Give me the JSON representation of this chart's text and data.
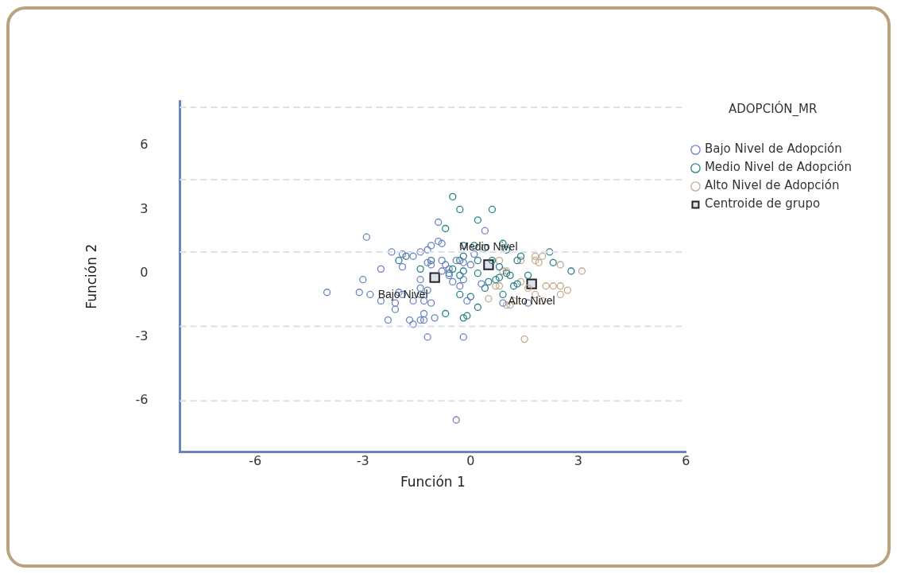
{
  "chart_data": {
    "type": "scatter",
    "xlabel": "Función 1",
    "ylabel": "Función 2",
    "legend_title": "ADOPCIÓN_MR",
    "legend": "top right",
    "marker": "circle",
    "grid": false,
    "xlim": [
      -8.1,
      6
    ],
    "ylim": [
      -8.4,
      8.1
    ],
    "xticks": [
      -6,
      -3,
      0,
      3,
      6
    ],
    "yticks": [
      -6,
      -3,
      0,
      3,
      6
    ],
    "ref_lines": [
      {
        "axis": "y",
        "value": 7.8,
        "label": null,
        "color": "#dcdfee",
        "line_style": "dashed"
      },
      {
        "axis": "y",
        "value": 4.4,
        "label": null,
        "color": "#dcdfee",
        "line_style": "dashed"
      },
      {
        "axis": "y",
        "value": 1,
        "label": null,
        "color": "#dcdfee",
        "line_style": "dashed"
      },
      {
        "axis": "y",
        "value": -2.5,
        "label": null,
        "color": "#dcdfee",
        "line_style": "dashed"
      },
      {
        "axis": "y",
        "value": -6,
        "label": null,
        "color": "#dcdfee",
        "line_style": "dashed"
      }
    ],
    "annotations": [
      {
        "text": "Bajo Nivel",
        "x": -1,
        "y": -0.2
      },
      {
        "text": "Medio Nivel",
        "x": 0.5,
        "y": 0.4
      },
      {
        "text": "Alto Nivel",
        "x": 1.7,
        "y": -0.5
      }
    ],
    "series": [
      {
        "name": "Bajo Nivel de Adopción",
        "color": "#6b84c0",
        "x": [
          -2.9,
          -0.9,
          0.4,
          -0.9,
          -0.8,
          -1.1,
          -2.2,
          -1.9,
          -1.6,
          -1.4,
          -1.2,
          -2.5,
          -1.9,
          -3,
          -4,
          -3.1,
          -2.8,
          -2.5,
          -2.1,
          -2.1,
          -2.3,
          -1.7,
          -1.6,
          -1.4,
          -1.3,
          -1,
          -1.3,
          -1.6,
          -1.3,
          -1.1,
          -1.9,
          -2,
          -1.4,
          -1.2,
          -1.4,
          -1.2,
          -0.8,
          -1.1,
          -0.7,
          -0.8,
          -0.5,
          -0.3,
          -0.2,
          -0.2,
          0,
          0.1,
          -1.2,
          -0.2,
          -0.4,
          -0.1,
          1.6,
          0.9,
          0.3,
          -0.6,
          -1.4,
          -0.4,
          -0.6
        ],
        "values": [
          1.7,
          2.4,
          2,
          1.5,
          1.4,
          1.3,
          1,
          0.9,
          0.8,
          1,
          1.1,
          0.2,
          0.3,
          -0.3,
          -0.9,
          -0.9,
          -1,
          -1.3,
          -1.4,
          -1.7,
          -2.2,
          -2.2,
          -2.4,
          -2.2,
          -2.2,
          -2.1,
          -1.9,
          -1.3,
          -1.3,
          -1.4,
          -1,
          -0.9,
          -1,
          -0.8,
          -0.3,
          0.5,
          0.6,
          0.4,
          0.4,
          0.1,
          -0.4,
          -0.6,
          -0.3,
          0.5,
          0.4,
          0.9,
          -3,
          -3,
          -6.9,
          -1.3,
          -1.4,
          -1.4,
          -0.5,
          -0.1,
          -0.7,
          0.6,
          0.2
        ]
      },
      {
        "name": "Medio Nivel de Adopción",
        "color": "#2a8088",
        "x": [
          -0.5,
          -0.3,
          0.6,
          0.2,
          -0.7,
          -0.2,
          0.1,
          0.4,
          0.9,
          1,
          2.2,
          -2,
          -1.8,
          -1.4,
          -1.1,
          -0.3,
          -0.5,
          -0.2,
          -0.6,
          -0.3,
          0.2,
          0.6,
          0.8,
          0.8,
          1,
          1.3,
          1.4,
          2.3,
          2.8,
          1.6,
          1.1,
          1.3,
          0.5,
          0.4,
          0.9,
          -0.3,
          0,
          0.2,
          -0.7,
          -0.2,
          -0.1,
          1.2,
          0.7,
          0.2,
          -0.2
        ],
        "values": [
          3.6,
          3,
          3,
          2.5,
          2.1,
          1.3,
          1.3,
          1.2,
          1.4,
          1.1,
          1,
          0.6,
          0.8,
          0.2,
          0.6,
          0.6,
          0.2,
          0.1,
          0,
          -0.1,
          0,
          0.6,
          0.3,
          -0.2,
          0,
          0.6,
          0.8,
          0.5,
          0.1,
          -0.1,
          -0.1,
          -0.5,
          -0.4,
          -0.7,
          -1,
          -1,
          -1.1,
          -1.6,
          -1.9,
          -2.1,
          -2,
          -0.6,
          -0.3,
          0.6,
          0.8
        ]
      },
      {
        "name": "Alto Nivel de Adopción",
        "color": "#c4ab92",
        "x": [
          1.8,
          2,
          1.8,
          1.9,
          1.4,
          0.8,
          2.5,
          3.1,
          0.9,
          1,
          0.8,
          0.7,
          2.1,
          2.3,
          2.5,
          2.7,
          2.5,
          1.8,
          2,
          1.2,
          1.1,
          1,
          0.5,
          1.5,
          1.6,
          1.4
        ],
        "values": [
          0.8,
          0.8,
          0.6,
          0.5,
          0.6,
          0.6,
          0.4,
          0.1,
          0.1,
          0.1,
          -0.6,
          -0.6,
          -0.6,
          -0.6,
          -0.6,
          -0.8,
          -1,
          -1,
          -1.3,
          -1.3,
          -1.5,
          -1.5,
          -1.2,
          -3.1,
          -0.7,
          -0.4
        ]
      },
      {
        "name": "Centroide de grupo",
        "color": "#dde1ee",
        "marker": "square",
        "x": [
          -1,
          0.5,
          1.7
        ],
        "values": [
          -0.2,
          0.4,
          -0.5
        ]
      }
    ]
  }
}
